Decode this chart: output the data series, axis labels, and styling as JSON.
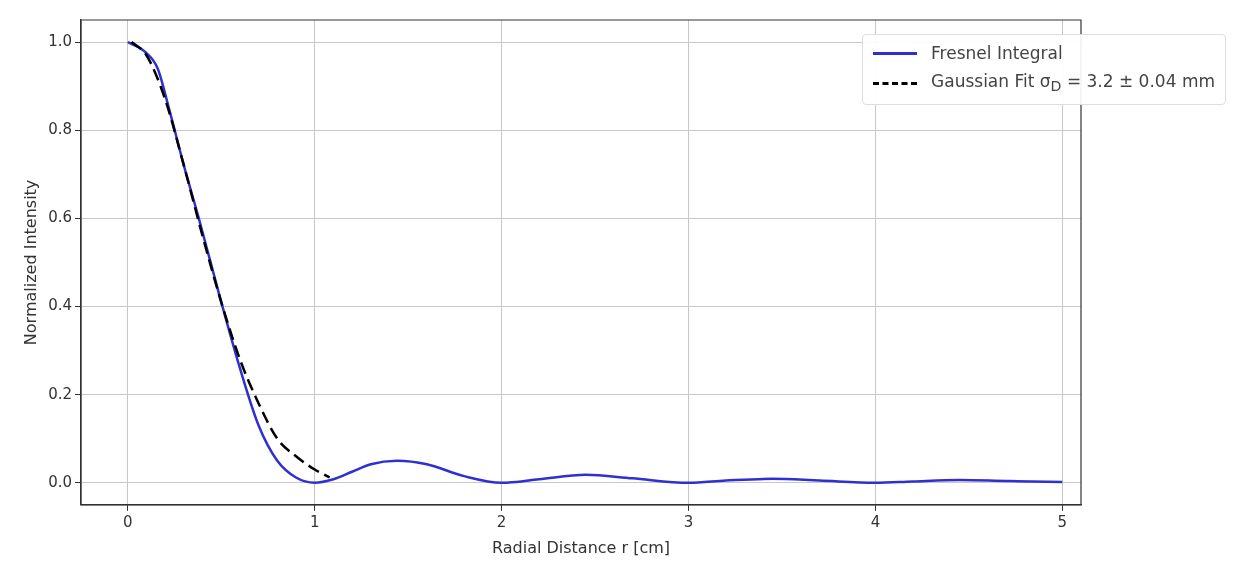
{
  "chart_data": {
    "type": "line",
    "xlabel": "Radial Distance r [cm]",
    "ylabel": "Normalized Intensity",
    "xlim": [
      -0.25,
      5.1
    ],
    "ylim": [
      -0.05,
      1.05
    ],
    "xticks": [
      0,
      1,
      2,
      3,
      4,
      5
    ],
    "yticks": [
      {
        "value": 0,
        "label": "0.0"
      },
      {
        "value": 0.2,
        "label": "0.2"
      },
      {
        "value": 0.4,
        "label": "0.4"
      },
      {
        "value": 0.6,
        "label": "0.6"
      },
      {
        "value": 0.8,
        "label": "0.8"
      },
      {
        "value": 1,
        "label": "1.0"
      }
    ],
    "grid": true,
    "legend": "top right",
    "marker": "none",
    "series": [
      {
        "name": "Fresnel Integral",
        "color": "#3030d0",
        "line_style": "solid",
        "x": [
          0,
          0.1,
          0.16,
          0.22,
          0.3,
          0.38,
          0.5,
          0.6,
          0.7,
          0.8,
          0.9,
          1.0,
          1.1,
          1.2,
          1.3,
          1.44,
          1.6,
          1.8,
          2.0,
          2.2,
          2.45,
          2.7,
          3.0,
          3.2,
          3.45,
          3.7,
          4.0,
          4.2,
          4.45,
          4.7,
          5.0
        ],
        "values": [
          1.0,
          0.975,
          0.94,
          0.85,
          0.72,
          0.6,
          0.41,
          0.26,
          0.13,
          0.05,
          0.012,
          0.0,
          0.008,
          0.025,
          0.042,
          0.05,
          0.042,
          0.015,
          0.0,
          0.008,
          0.018,
          0.01,
          0.0,
          0.005,
          0.009,
          0.005,
          0.0,
          0.003,
          0.006,
          0.004,
          0.002
        ]
      },
      {
        "name": "Gaussian Fit σ$_{D}$ = 3.2 ± 0.04 mm",
        "color": "#000000",
        "line_style": "dashed",
        "x": [
          0.02,
          0.1,
          0.2,
          0.3,
          0.4,
          0.5,
          0.6,
          0.7,
          0.8,
          0.9,
          1.0,
          1.08
        ],
        "values": [
          1.0,
          0.97,
          0.87,
          0.72,
          0.56,
          0.41,
          0.28,
          0.18,
          0.1,
          0.06,
          0.03,
          0.012
        ]
      }
    ]
  }
}
